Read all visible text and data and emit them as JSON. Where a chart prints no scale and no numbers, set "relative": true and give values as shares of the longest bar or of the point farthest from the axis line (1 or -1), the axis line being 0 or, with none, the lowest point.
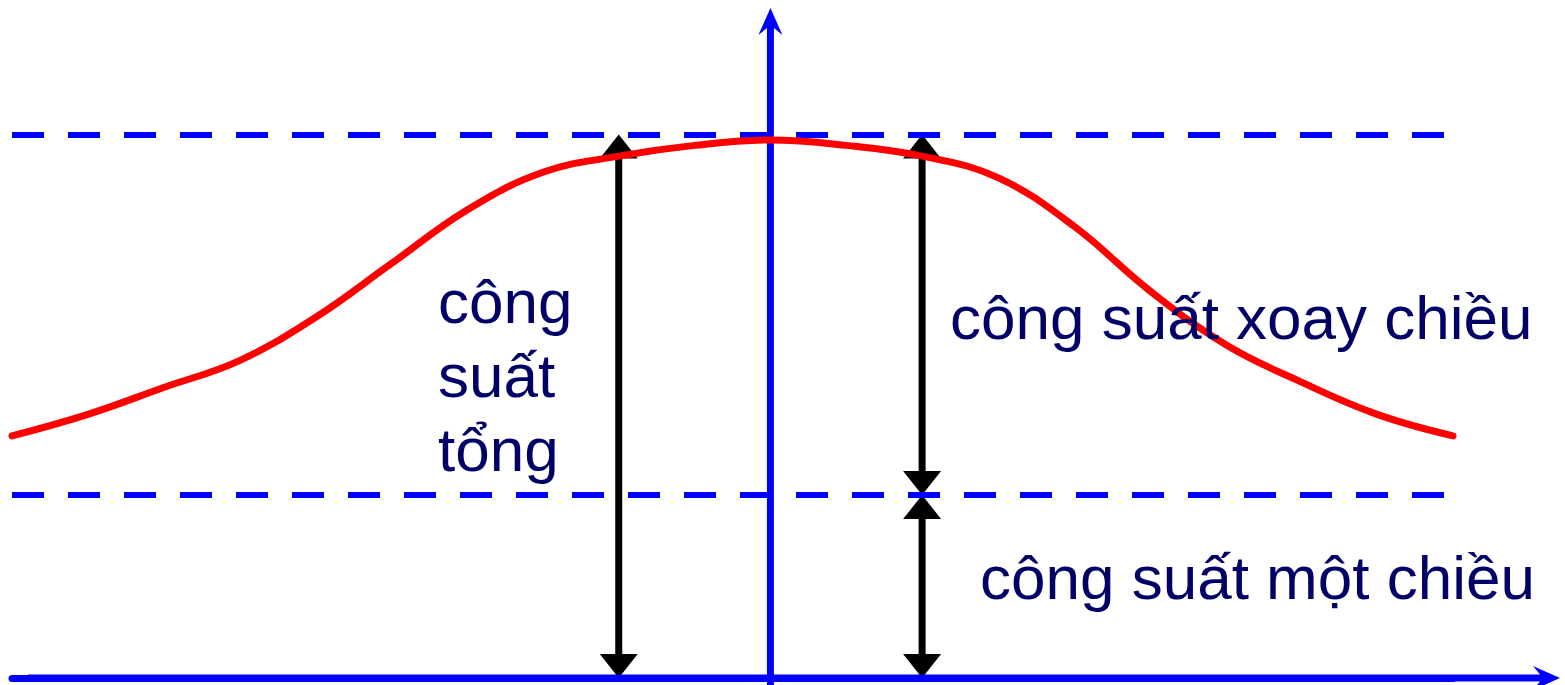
{
  "chart_data": {
    "type": "line",
    "relative": true,
    "tick_labels": false,
    "line_style": "solid",
    "categories": [
      null,
      null,
      null,
      null,
      null,
      null,
      null,
      null,
      null,
      null,
      null,
      null,
      null,
      null,
      null,
      null,
      null,
      null,
      null,
      null
    ],
    "series": [
      {
        "color": "#ff0000",
        "values": [
          0.45,
          0.49,
          0.54,
          0.59,
          0.67,
          0.77,
          0.87,
          0.94,
          0.97,
          0.99,
          1,
          0.99,
          0.97,
          0.93,
          0.84,
          0.72,
          0.62,
          0.55,
          0.49,
          0.45
        ]
      }
    ],
    "ref_lines": [
      {
        "axis": "y",
        "value": 1.01,
        "color": "#0000ff",
        "line_style": "dashed"
      },
      {
        "axis": "y",
        "value": 0.34,
        "color": "#0000ff",
        "line_style": "dashed"
      }
    ],
    "annotations": [
      "công suất tổng",
      "công suất xoay chiều",
      "công suất một chiều"
    ]
  }
}
